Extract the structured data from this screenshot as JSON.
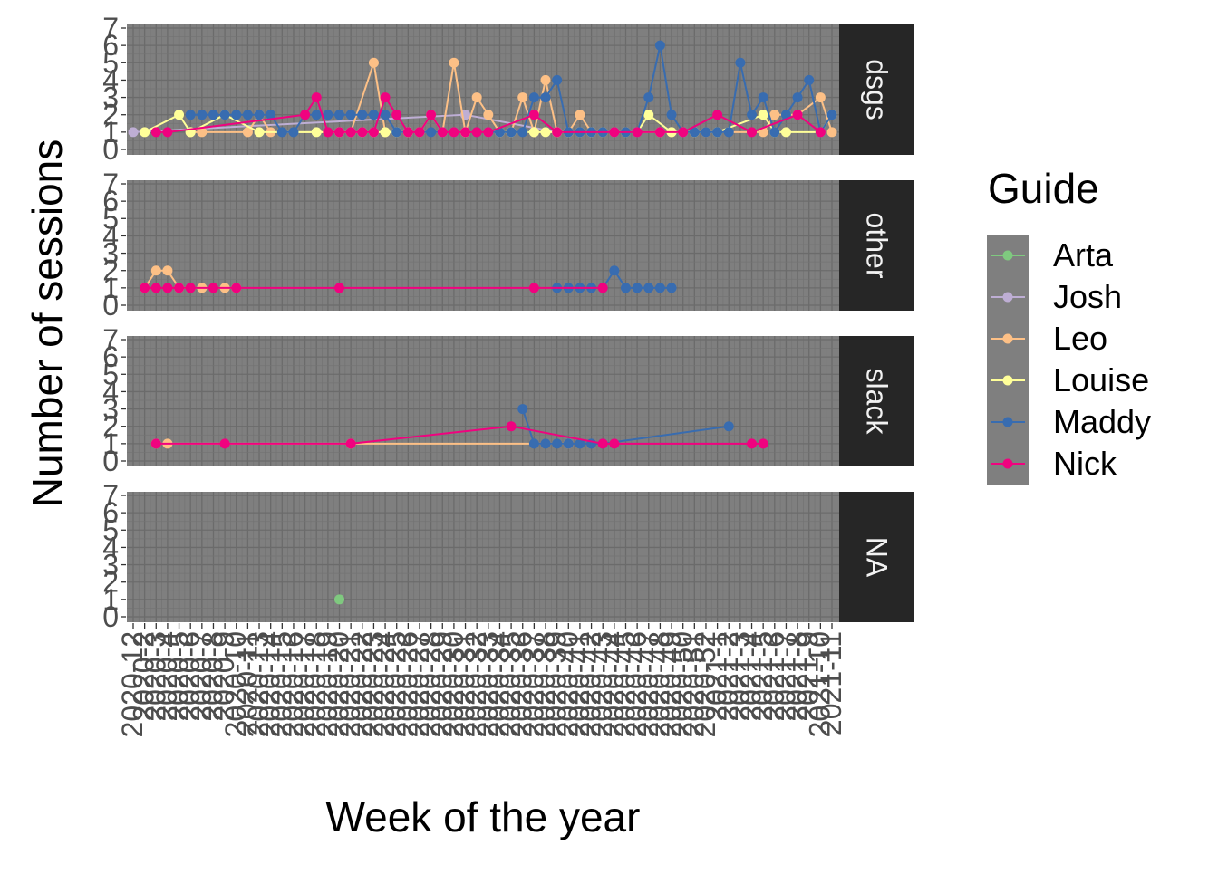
{
  "chart_data": {
    "type": "line",
    "facet_by": "channel",
    "panels": [
      "dsgs",
      "other",
      "slack",
      "NA"
    ],
    "x_axis": {
      "label": "Week of the year",
      "tick_count": 62,
      "tick_labels_rotated": true,
      "tick_labels": [
        "2020-12",
        "2020-2",
        "2020-3",
        "2020-4",
        "2020-5",
        "2020-6",
        "2020-7",
        "2020-8",
        "2020-9",
        "2020-10",
        "2020-11",
        "2020-13",
        "2020-14",
        "2020-15",
        "2020-16",
        "2020-17",
        "2020-18",
        "2020-19",
        "2020-20",
        "2020-21",
        "2020-22",
        "2020-23",
        "2020-24",
        "2020-25",
        "2020-26",
        "2020-27",
        "2020-28",
        "2020-29",
        "2020-30",
        "2020-31",
        "2020-32",
        "2020-33",
        "2020-34",
        "2020-35",
        "2020-36",
        "2020-37",
        "2020-38",
        "2020-39",
        "2020-40",
        "2020-41",
        "2020-42",
        "2020-43",
        "2020-44",
        "2020-45",
        "2020-46",
        "2020-47",
        "2020-48",
        "2020-49",
        "2020-50",
        "2020-51",
        "2020-52",
        "2021-1",
        "2021-2",
        "2021-3",
        "2021-4",
        "2021-5",
        "2021-6",
        "2021-7",
        "2021-8",
        "2021-9",
        "2021-10",
        "2021-11"
      ]
    },
    "y_axis": {
      "label": "Number of sessions",
      "ylim": [
        0,
        7
      ],
      "ticks": [
        0,
        1,
        2,
        3,
        4,
        5,
        6,
        7
      ]
    },
    "grid": true,
    "panel_background": "#7f7f7f",
    "strip_background": "#262626",
    "legend": {
      "title": "Guide",
      "position": "right",
      "key_background": "#7f7f7f"
    },
    "series": [
      {
        "name": "Arta",
        "color": "#7fc97f",
        "panels": {
          "dsgs": [
            [
              24,
              1
            ]
          ],
          "other": [],
          "slack": [],
          "NA": [
            [
              18,
              1
            ]
          ]
        }
      },
      {
        "name": "Josh",
        "color": "#beaed4",
        "panels": {
          "dsgs": [
            [
              0,
              1
            ],
            [
              29,
              2
            ],
            [
              37,
              1
            ]
          ],
          "other": [],
          "slack": [],
          "NA": []
        }
      },
      {
        "name": "Leo",
        "color": "#fdc086",
        "panels": {
          "dsgs": [
            [
              5,
              1
            ],
            [
              6,
              1
            ],
            [
              10,
              1
            ],
            [
              11,
              2
            ],
            [
              12,
              1
            ],
            [
              19,
              1
            ],
            [
              21,
              5
            ],
            [
              22,
              1
            ],
            [
              23,
              1
            ],
            [
              25,
              1
            ],
            [
              26,
              2
            ],
            [
              27,
              1
            ],
            [
              28,
              5
            ],
            [
              29,
              1
            ],
            [
              30,
              3
            ],
            [
              31,
              2
            ],
            [
              32,
              1
            ],
            [
              33,
              1
            ],
            [
              34,
              3
            ],
            [
              35,
              1
            ],
            [
              36,
              4
            ],
            [
              37,
              1
            ],
            [
              38,
              1
            ],
            [
              39,
              2
            ],
            [
              40,
              1
            ],
            [
              42,
              1
            ],
            [
              46,
              1
            ],
            [
              47,
              1
            ],
            [
              48,
              1
            ],
            [
              49,
              1
            ],
            [
              50,
              1
            ],
            [
              55,
              1
            ],
            [
              56,
              2
            ],
            [
              58,
              2
            ],
            [
              60,
              3
            ],
            [
              61,
              1
            ]
          ],
          "other": [
            [
              1,
              1
            ],
            [
              2,
              2
            ],
            [
              3,
              2
            ],
            [
              4,
              1
            ],
            [
              6,
              1
            ],
            [
              8,
              1
            ],
            [
              9,
              1
            ]
          ],
          "slack": [
            [
              2,
              1
            ],
            [
              3,
              1
            ],
            [
              19,
              1
            ],
            [
              38,
              1
            ]
          ],
          "NA": []
        }
      },
      {
        "name": "Louise",
        "color": "#ffff99",
        "panels": {
          "dsgs": [
            [
              1,
              1
            ],
            [
              4,
              2
            ],
            [
              5,
              1
            ],
            [
              8,
              2
            ],
            [
              11,
              1
            ],
            [
              16,
              1
            ],
            [
              18,
              1
            ],
            [
              20,
              1
            ],
            [
              21,
              1
            ],
            [
              22,
              1
            ],
            [
              23,
              1
            ],
            [
              24,
              1
            ],
            [
              27,
              1
            ],
            [
              28,
              1
            ],
            [
              29,
              1
            ],
            [
              31,
              1
            ],
            [
              32,
              1
            ],
            [
              33,
              1
            ],
            [
              35,
              1
            ],
            [
              36,
              1
            ],
            [
              37,
              1
            ],
            [
              38,
              1
            ],
            [
              39,
              1
            ],
            [
              40,
              1
            ],
            [
              41,
              1
            ],
            [
              42,
              1
            ],
            [
              43,
              1
            ],
            [
              44,
              1
            ],
            [
              45,
              2
            ],
            [
              47,
              1
            ],
            [
              48,
              1
            ],
            [
              49,
              1
            ],
            [
              51,
              1
            ],
            [
              55,
              2
            ],
            [
              56,
              1
            ],
            [
              57,
              1
            ],
            [
              60,
              1
            ],
            [
              61,
              2
            ]
          ],
          "other": [],
          "slack": [],
          "NA": []
        }
      },
      {
        "name": "Maddy",
        "color": "#386cb0",
        "panels": {
          "dsgs": [
            [
              5,
              2
            ],
            [
              6,
              2
            ],
            [
              7,
              2
            ],
            [
              8,
              2
            ],
            [
              9,
              2
            ],
            [
              10,
              2
            ],
            [
              11,
              2
            ],
            [
              12,
              2
            ],
            [
              13,
              1
            ],
            [
              14,
              1
            ],
            [
              15,
              2
            ],
            [
              16,
              2
            ],
            [
              17,
              2
            ],
            [
              18,
              2
            ],
            [
              19,
              2
            ],
            [
              20,
              2
            ],
            [
              21,
              2
            ],
            [
              22,
              2
            ],
            [
              23,
              1
            ],
            [
              26,
              1
            ],
            [
              27,
              1
            ],
            [
              28,
              1
            ],
            [
              30,
              1
            ],
            [
              31,
              1
            ],
            [
              32,
              1
            ],
            [
              33,
              1
            ],
            [
              34,
              1
            ],
            [
              35,
              3
            ],
            [
              36,
              3
            ],
            [
              37,
              4
            ],
            [
              38,
              1
            ],
            [
              39,
              1
            ],
            [
              40,
              1
            ],
            [
              41,
              1
            ],
            [
              42,
              1
            ],
            [
              43,
              1
            ],
            [
              44,
              1
            ],
            [
              45,
              3
            ],
            [
              46,
              6
            ],
            [
              47,
              2
            ],
            [
              48,
              1
            ],
            [
              49,
              1
            ],
            [
              50,
              1
            ],
            [
              51,
              1
            ],
            [
              52,
              1
            ],
            [
              53,
              5
            ],
            [
              54,
              2
            ],
            [
              55,
              3
            ],
            [
              56,
              1
            ],
            [
              57,
              2
            ],
            [
              58,
              3
            ],
            [
              59,
              4
            ],
            [
              60,
              1
            ],
            [
              61,
              2
            ]
          ],
          "other": [
            [
              37,
              1
            ],
            [
              38,
              1
            ],
            [
              39,
              1
            ],
            [
              40,
              1
            ],
            [
              41,
              1
            ],
            [
              42,
              2
            ],
            [
              43,
              1
            ],
            [
              44,
              1
            ],
            [
              45,
              1
            ],
            [
              46,
              1
            ],
            [
              47,
              1
            ]
          ],
          "slack": [
            [
              34,
              3
            ],
            [
              35,
              1
            ],
            [
              36,
              1
            ],
            [
              37,
              1
            ],
            [
              38,
              1
            ],
            [
              39,
              1
            ],
            [
              40,
              1
            ],
            [
              41,
              1
            ],
            [
              52,
              2
            ]
          ],
          "NA": []
        }
      },
      {
        "name": "Nick",
        "color": "#f0027f",
        "panels": {
          "dsgs": [
            [
              2,
              1
            ],
            [
              3,
              1
            ],
            [
              15,
              2
            ],
            [
              16,
              3
            ],
            [
              17,
              1
            ],
            [
              18,
              1
            ],
            [
              19,
              1
            ],
            [
              20,
              1
            ],
            [
              21,
              1
            ],
            [
              22,
              3
            ],
            [
              23,
              2
            ],
            [
              24,
              1
            ],
            [
              25,
              1
            ],
            [
              26,
              2
            ],
            [
              27,
              1
            ],
            [
              28,
              1
            ],
            [
              29,
              1
            ],
            [
              30,
              1
            ],
            [
              31,
              1
            ],
            [
              35,
              2
            ],
            [
              37,
              1
            ],
            [
              42,
              1
            ],
            [
              44,
              1
            ],
            [
              46,
              1
            ],
            [
              48,
              1
            ],
            [
              51,
              2
            ],
            [
              54,
              1
            ],
            [
              58,
              2
            ],
            [
              60,
              1
            ]
          ],
          "other": [
            [
              1,
              1
            ],
            [
              2,
              1
            ],
            [
              3,
              1
            ],
            [
              4,
              1
            ],
            [
              5,
              1
            ],
            [
              7,
              1
            ],
            [
              9,
              1
            ],
            [
              18,
              1
            ],
            [
              35,
              1
            ],
            [
              41,
              1
            ]
          ],
          "slack": [
            [
              2,
              1
            ],
            [
              8,
              1
            ],
            [
              19,
              1
            ],
            [
              33,
              2
            ],
            [
              41,
              1
            ],
            [
              42,
              1
            ],
            [
              54,
              1
            ],
            [
              55,
              1
            ]
          ],
          "NA": []
        }
      }
    ]
  }
}
